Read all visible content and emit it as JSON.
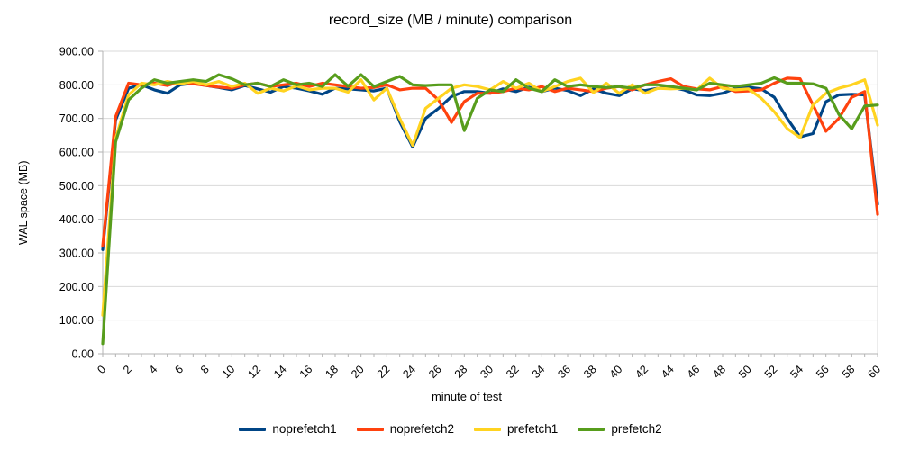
{
  "chart_data": {
    "type": "line",
    "title": "record_size (MB / minute) comparison",
    "xlabel": "minute of test",
    "ylabel": "WAL space (MB)",
    "xlim": [
      0,
      60
    ],
    "ylim": [
      0,
      900
    ],
    "grid": true,
    "legend_position": "bottom",
    "grid_color": "#d9d9d9",
    "axis_color": "#b3b3b3",
    "x_tick_step": 2,
    "x_ticks": [
      0,
      2,
      4,
      6,
      8,
      10,
      12,
      14,
      16,
      18,
      20,
      22,
      24,
      26,
      28,
      30,
      32,
      34,
      36,
      38,
      40,
      42,
      44,
      46,
      48,
      50,
      52,
      54,
      56,
      58,
      60
    ],
    "y_tick_labels": [
      "0.00",
      "100.00",
      "200.00",
      "300.00",
      "400.00",
      "500.00",
      "600.00",
      "700.00",
      "800.00",
      "900.00"
    ],
    "x": [
      0,
      1,
      2,
      3,
      4,
      5,
      6,
      7,
      8,
      9,
      10,
      11,
      12,
      13,
      14,
      15,
      16,
      17,
      18,
      19,
      20,
      21,
      22,
      23,
      24,
      25,
      26,
      27,
      28,
      29,
      30,
      31,
      32,
      33,
      34,
      35,
      36,
      37,
      38,
      39,
      40,
      41,
      42,
      43,
      44,
      45,
      46,
      47,
      48,
      49,
      50,
      51,
      52,
      53,
      54,
      55,
      56,
      57,
      58,
      59,
      60
    ],
    "series": [
      {
        "name": "noprefetch1",
        "color": "#004586",
        "values": [
          310,
          695,
          790,
          800,
          785,
          775,
          800,
          805,
          798,
          792,
          785,
          798,
          788,
          778,
          795,
          790,
          782,
          772,
          790,
          788,
          785,
          782,
          790,
          690,
          615,
          700,
          730,
          765,
          780,
          780,
          775,
          788,
          780,
          793,
          780,
          790,
          783,
          768,
          788,
          775,
          768,
          788,
          783,
          790,
          793,
          785,
          770,
          768,
          775,
          790,
          793,
          788,
          763,
          700,
          645,
          655,
          750,
          770,
          772,
          770,
          445
        ]
      },
      {
        "name": "noprefetch2",
        "color": "#FF420E",
        "values": [
          320,
          705,
          805,
          800,
          805,
          798,
          810,
          803,
          798,
          793,
          790,
          800,
          805,
          795,
          800,
          805,
          795,
          805,
          800,
          795,
          790,
          792,
          800,
          785,
          790,
          790,
          755,
          688,
          750,
          775,
          775,
          780,
          790,
          785,
          795,
          780,
          790,
          785,
          780,
          790,
          795,
          785,
          800,
          810,
          818,
          795,
          788,
          785,
          795,
          780,
          782,
          785,
          805,
          820,
          818,
          740,
          662,
          700,
          763,
          780,
          415
        ]
      },
      {
        "name": "prefetch1",
        "color": "#FFD320",
        "values": [
          115,
          640,
          770,
          805,
          800,
          810,
          803,
          810,
          800,
          810,
          795,
          805,
          775,
          790,
          782,
          797,
          785,
          790,
          790,
          778,
          815,
          755,
          790,
          700,
          620,
          730,
          760,
          790,
          800,
          795,
          785,
          810,
          790,
          805,
          780,
          795,
          810,
          820,
          777,
          805,
          775,
          800,
          775,
          790,
          788,
          790,
          785,
          820,
          790,
          785,
          788,
          760,
          720,
          670,
          643,
          740,
          775,
          790,
          800,
          815,
          680
        ]
      },
      {
        "name": "prefetch2",
        "color": "#579D1C",
        "values": [
          30,
          630,
          755,
          790,
          815,
          805,
          810,
          815,
          810,
          830,
          818,
          800,
          805,
          795,
          815,
          800,
          805,
          795,
          830,
          796,
          830,
          795,
          810,
          825,
          800,
          798,
          800,
          800,
          664,
          760,
          785,
          780,
          815,
          790,
          780,
          815,
          795,
          800,
          795,
          792,
          795,
          790,
          800,
          800,
          795,
          790,
          785,
          805,
          800,
          795,
          800,
          805,
          821,
          805,
          805,
          803,
          790,
          712,
          669,
          737,
          740
        ]
      }
    ]
  }
}
